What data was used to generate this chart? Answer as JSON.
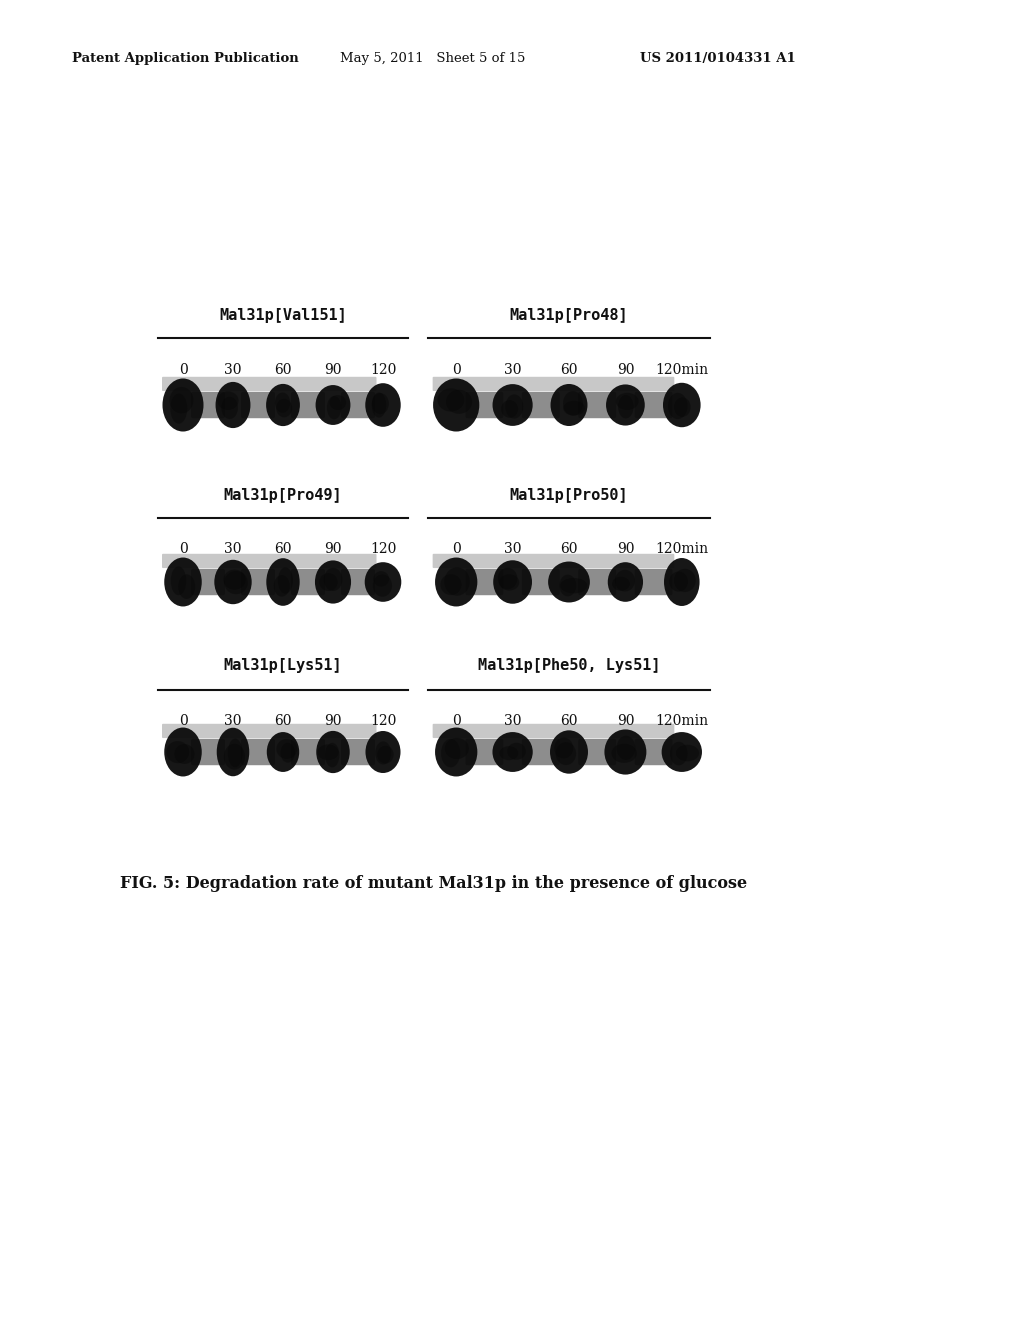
{
  "header_left": "Patent Application Publication",
  "header_mid": "May 5, 2011   Sheet 5 of 15",
  "header_right": "US 2011/0104331 A1",
  "caption": "FIG. 5: Degradation rate of mutant Mal31p in the presence of glucose",
  "rows": [
    {
      "label_left": "Mal31p[Val151]",
      "label_right": "Mal31p[Pro48]",
      "timepoints": [
        "0",
        "30",
        "60",
        "90",
        "120",
        "0",
        "30",
        "60",
        "90",
        "120min"
      ]
    },
    {
      "label_left": "Mal31p[Pro49]",
      "label_right": "Mal31p[Pro50]",
      "timepoints": [
        "0",
        "30",
        "60",
        "90",
        "120",
        "0",
        "30",
        "60",
        "90",
        "120min"
      ]
    },
    {
      "label_left": "Mal31p[Lys51]",
      "label_right": "Mal31p[Phe50, Lys51]",
      "timepoints": [
        "0",
        "30",
        "60",
        "90",
        "120",
        "0",
        "30",
        "60",
        "90",
        "120min"
      ]
    }
  ],
  "bg_color": "#ffffff",
  "text_color": "#111111"
}
